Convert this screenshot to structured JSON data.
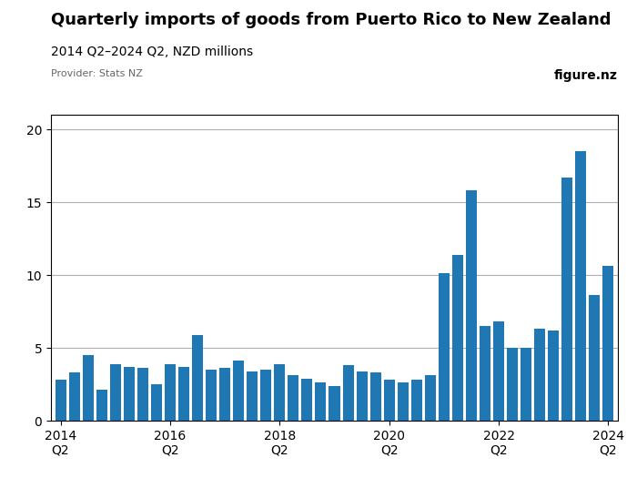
{
  "chart_data": {
    "type": "bar",
    "title": "Quarterly imports of goods from Puerto Rico to New Zealand",
    "subtitle": "2014 Q2–2024 Q2, NZD millions",
    "annotations": [
      "Provider: Stats NZ",
      "figure.nz"
    ],
    "categories": [
      "2014\nQ2",
      null,
      null,
      null,
      null,
      null,
      null,
      null,
      "2016\nQ2",
      null,
      null,
      null,
      null,
      null,
      null,
      null,
      "2018\nQ2",
      null,
      null,
      null,
      null,
      null,
      null,
      null,
      "2020\nQ2",
      null,
      null,
      null,
      null,
      null,
      null,
      null,
      "2022\nQ2",
      null,
      null,
      null,
      null,
      null,
      null,
      null,
      "2024\nQ2"
    ],
    "values": [
      2.8,
      3.3,
      4.5,
      2.1,
      3.9,
      3.7,
      3.6,
      2.5,
      3.9,
      3.7,
      5.9,
      3.5,
      3.6,
      4.1,
      3.4,
      3.5,
      3.9,
      3.1,
      2.9,
      2.6,
      2.4,
      3.8,
      3.4,
      3.3,
      2.8,
      2.6,
      2.8,
      3.1,
      10.1,
      11.4,
      15.8,
      6.5,
      6.8,
      5.0,
      5.0,
      6.3,
      6.2,
      16.7,
      18.5,
      8.6,
      10.6
    ],
    "ylim": [
      0,
      21
    ],
    "yticks": [
      0,
      5,
      10,
      15,
      20
    ],
    "grid": true
  }
}
